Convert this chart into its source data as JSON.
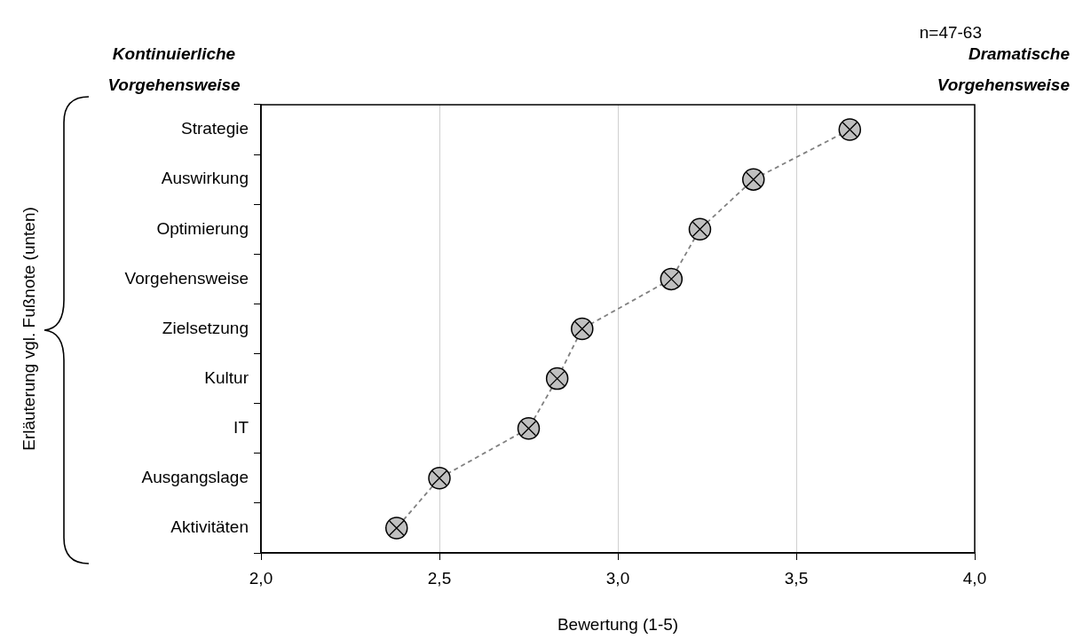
{
  "chart_data": {
    "type": "line",
    "orientation": "horizontal",
    "categories": [
      "Strategie",
      "Auswirkung",
      "Optimierung",
      "Vorgehensweise",
      "Zielsetzung",
      "Kultur",
      "IT",
      "Ausgangslage",
      "Aktivitäten"
    ],
    "values": [
      3.65,
      3.38,
      3.23,
      3.15,
      2.9,
      2.83,
      2.75,
      2.5,
      2.38
    ],
    "color": "#808080",
    "marker": "circle",
    "line_style": "dashed",
    "xlim": [
      2,
      4
    ],
    "xticks": [
      {
        "value": 2,
        "label": "2,0"
      },
      {
        "value": 2.5,
        "label": "2,5"
      },
      {
        "value": 3,
        "label": "3,0"
      },
      {
        "value": 3.5,
        "label": "3,5"
      },
      {
        "value": 4,
        "label": "4,0"
      }
    ],
    "xlabel": "Bewertung (1-5)",
    "grid": "x",
    "legend": false,
    "annotations": [
      "n=47-63",
      "Kontinuierliche Vorgehensweise",
      "Dramatische Vorgehensweise",
      "Erläuterung vgl. Fußnote (unten)"
    ]
  }
}
